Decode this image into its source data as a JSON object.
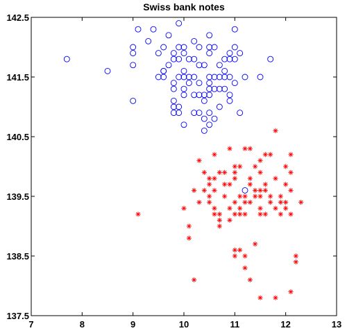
{
  "chart_data": {
    "type": "scatter",
    "title": "Swiss bank notes",
    "xlabel": "",
    "ylabel": "",
    "xlim": [
      7,
      13
    ],
    "ylim": [
      137.5,
      142.5
    ],
    "xticks": [
      "7",
      "8",
      "9",
      "10",
      "11",
      "12",
      "13"
    ],
    "yticks": [
      "137.5",
      "138.5",
      "139.5",
      "140.5",
      "141.5",
      "142.5"
    ],
    "grid": false,
    "legend": "none",
    "series": [
      {
        "marker": "circle",
        "color": "#0000ff",
        "points": [
          [
            7.7,
            141.8
          ],
          [
            8.5,
            141.6
          ],
          [
            9.0,
            142.0
          ],
          [
            9.0,
            141.9
          ],
          [
            9.0,
            141.7
          ],
          [
            9.0,
            141.1
          ],
          [
            9.1,
            142.3
          ],
          [
            9.3,
            142.1
          ],
          [
            9.4,
            142.3
          ],
          [
            9.5,
            141.9
          ],
          [
            9.5,
            141.5
          ],
          [
            9.6,
            141.6
          ],
          [
            9.6,
            142.0
          ],
          [
            9.6,
            141.6
          ],
          [
            9.6,
            141.5
          ],
          [
            9.7,
            141.7
          ],
          [
            9.7,
            142.2
          ],
          [
            9.8,
            141.8
          ],
          [
            9.8,
            141.4
          ],
          [
            9.8,
            141.3
          ],
          [
            9.8,
            141.1
          ],
          [
            9.8,
            141.0
          ],
          [
            9.8,
            140.9
          ],
          [
            9.8,
            141.9
          ],
          [
            9.9,
            142.4
          ],
          [
            9.9,
            142.0
          ],
          [
            9.9,
            141.8
          ],
          [
            9.9,
            141.5
          ],
          [
            9.9,
            140.9
          ],
          [
            10.0,
            141.6
          ],
          [
            10.0,
            141.5
          ],
          [
            10.0,
            141.9
          ],
          [
            10.0,
            142.0
          ],
          [
            10.0,
            141.3
          ],
          [
            10.0,
            141.2
          ],
          [
            10.0,
            140.7
          ],
          [
            10.1,
            141.8
          ],
          [
            10.1,
            141.5
          ],
          [
            10.1,
            141.4
          ],
          [
            10.2,
            142.1
          ],
          [
            10.2,
            141.5
          ],
          [
            10.2,
            141.8
          ],
          [
            10.2,
            141.2
          ],
          [
            10.2,
            140.9
          ],
          [
            10.3,
            142.0
          ],
          [
            10.3,
            141.7
          ],
          [
            10.3,
            141.4
          ],
          [
            10.3,
            141.2
          ],
          [
            10.3,
            140.9
          ],
          [
            10.4,
            141.7
          ],
          [
            10.4,
            141.2
          ],
          [
            10.4,
            141.1
          ],
          [
            10.4,
            140.8
          ],
          [
            10.5,
            142.0
          ],
          [
            10.5,
            142.2
          ],
          [
            10.5,
            141.9
          ],
          [
            10.5,
            141.5
          ],
          [
            10.5,
            141.4
          ],
          [
            10.5,
            141.3
          ],
          [
            10.5,
            141.2
          ],
          [
            10.5,
            140.9
          ],
          [
            10.6,
            142.0
          ],
          [
            10.6,
            141.5
          ],
          [
            10.6,
            141.3
          ],
          [
            10.6,
            140.8
          ],
          [
            10.7,
            141.7
          ],
          [
            10.7,
            141.5
          ],
          [
            10.7,
            141.3
          ],
          [
            10.7,
            141.0
          ],
          [
            10.8,
            141.8
          ],
          [
            10.8,
            141.6
          ],
          [
            10.8,
            141.5
          ],
          [
            10.9,
            141.9
          ],
          [
            10.9,
            141.8
          ],
          [
            10.9,
            141.5
          ],
          [
            10.9,
            141.2
          ],
          [
            11.0,
            142.3
          ],
          [
            11.0,
            141.8
          ],
          [
            11.0,
            141.4
          ],
          [
            11.1,
            141.9
          ],
          [
            11.1,
            140.9
          ],
          [
            11.2,
            141.5
          ],
          [
            11.5,
            141.5
          ],
          [
            11.7,
            141.8
          ],
          [
            10.5,
            140.7
          ],
          [
            10.9,
            141.1
          ],
          [
            11.0,
            142.0
          ],
          [
            10.8,
            141.3
          ],
          [
            10.4,
            140.6
          ],
          [
            9.9,
            141.0
          ],
          [
            11.2,
            139.6
          ]
        ]
      },
      {
        "marker": "asterisk",
        "color": "#ff0000",
        "points": [
          [
            9.1,
            139.2
          ],
          [
            10.0,
            139.3
          ],
          [
            10.1,
            139.0
          ],
          [
            10.1,
            138.8
          ],
          [
            10.2,
            139.6
          ],
          [
            10.2,
            138.1
          ],
          [
            10.3,
            140.1
          ],
          [
            10.3,
            139.4
          ],
          [
            10.4,
            139.9
          ],
          [
            10.5,
            139.8
          ],
          [
            10.5,
            139.7
          ],
          [
            10.5,
            139.5
          ],
          [
            10.5,
            139.4
          ],
          [
            10.6,
            140.2
          ],
          [
            10.6,
            139.8
          ],
          [
            10.6,
            139.6
          ],
          [
            10.6,
            139.3
          ],
          [
            10.6,
            139.2
          ],
          [
            10.7,
            139.9
          ],
          [
            10.7,
            139.2
          ],
          [
            10.7,
            139.1
          ],
          [
            10.7,
            139.0
          ],
          [
            10.8,
            139.7
          ],
          [
            10.8,
            139.5
          ],
          [
            10.9,
            140.3
          ],
          [
            10.9,
            139.7
          ],
          [
            10.9,
            139.3
          ],
          [
            10.9,
            139.1
          ],
          [
            11.0,
            140.0
          ],
          [
            11.0,
            139.9
          ],
          [
            11.0,
            139.8
          ],
          [
            11.0,
            139.4
          ],
          [
            11.0,
            139.2
          ],
          [
            11.0,
            138.6
          ],
          [
            11.0,
            138.5
          ],
          [
            11.1,
            140.0
          ],
          [
            11.1,
            139.5
          ],
          [
            11.1,
            139.3
          ],
          [
            11.1,
            139.2
          ],
          [
            11.1,
            138.6
          ],
          [
            11.2,
            140.3
          ],
          [
            11.2,
            139.5
          ],
          [
            11.2,
            139.4
          ],
          [
            11.2,
            139.2
          ],
          [
            11.2,
            138.5
          ],
          [
            11.2,
            138.3
          ],
          [
            11.3,
            140.3
          ],
          [
            11.3,
            139.8
          ],
          [
            11.3,
            139.7
          ],
          [
            11.3,
            139.4
          ],
          [
            11.3,
            138.1
          ],
          [
            11.4,
            139.6
          ],
          [
            11.4,
            139.5
          ],
          [
            11.4,
            138.7
          ],
          [
            11.5,
            140.1
          ],
          [
            11.5,
            139.9
          ],
          [
            11.5,
            139.6
          ],
          [
            11.5,
            139.5
          ],
          [
            11.5,
            139.3
          ],
          [
            11.5,
            139.2
          ],
          [
            11.5,
            137.8
          ],
          [
            11.6,
            140.2
          ],
          [
            11.6,
            139.7
          ],
          [
            11.6,
            139.2
          ],
          [
            11.7,
            140.2
          ],
          [
            11.7,
            139.5
          ],
          [
            11.7,
            139.4
          ],
          [
            11.8,
            139.8
          ],
          [
            11.8,
            139.3
          ],
          [
            11.8,
            137.8
          ],
          [
            11.8,
            140.6
          ],
          [
            11.9,
            139.5
          ],
          [
            11.9,
            139.4
          ],
          [
            11.9,
            139.2
          ],
          [
            12.0,
            140.0
          ],
          [
            12.0,
            139.7
          ],
          [
            12.0,
            139.4
          ],
          [
            12.0,
            139.3
          ],
          [
            12.1,
            140.2
          ],
          [
            12.1,
            139.9
          ],
          [
            12.1,
            139.6
          ],
          [
            12.1,
            139.2
          ],
          [
            12.1,
            137.9
          ],
          [
            12.2,
            138.5
          ],
          [
            12.2,
            138.4
          ],
          [
            12.3,
            139.4
          ],
          [
            10.8,
            139.9
          ],
          [
            11.4,
            140.0
          ],
          [
            10.4,
            139.6
          ],
          [
            11.6,
            139.6
          ]
        ]
      }
    ]
  }
}
